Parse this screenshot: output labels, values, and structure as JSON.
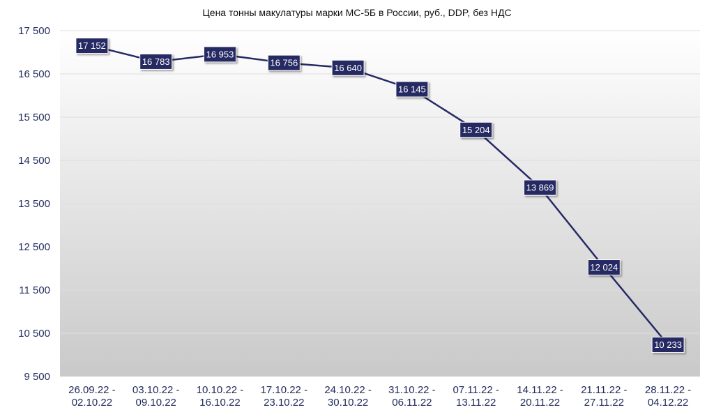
{
  "chart_data": {
    "type": "line",
    "title": "Цена тонны макулатуры марки МС-5Б в России, руб., DDP, без НДС",
    "xlabel": "",
    "ylabel": "",
    "categories": [
      [
        "26.09.22 -",
        "02.10.22"
      ],
      [
        "03.10.22 -",
        "09.10.22"
      ],
      [
        "10.10.22 -",
        "16.10.22"
      ],
      [
        "17.10.22 -",
        "23.10.22"
      ],
      [
        "24.10.22 -",
        "30.10.22"
      ],
      [
        "31.10.22 -",
        "06.11.22"
      ],
      [
        "07.11.22 -",
        "13.11.22"
      ],
      [
        "14.11.22 -",
        "20.11.22"
      ],
      [
        "21.11.22 -",
        "27.11.22"
      ],
      [
        "28.11.22 -",
        "04.12.22"
      ]
    ],
    "series": [
      {
        "values": [
          17152,
          16783,
          16953,
          16756,
          16640,
          16145,
          15204,
          13869,
          12024,
          10233
        ],
        "labels": [
          "17 152",
          "16 783",
          "16 953",
          "16 756",
          "16 640",
          "16 145",
          "15 204",
          "13 869",
          "12 024",
          "10 233"
        ],
        "color": "#262a64"
      }
    ],
    "ylim": [
      9500,
      17500
    ],
    "yticks": [
      9500,
      10500,
      11500,
      12500,
      13500,
      14500,
      15500,
      16500,
      17500
    ],
    "ytick_labels": [
      "9 500",
      "10 500",
      "11 500",
      "12 500",
      "13 500",
      "14 500",
      "15 500",
      "16 500",
      "17 500"
    ],
    "grid": true,
    "legend": "none",
    "colors": {
      "line": "#262a64",
      "label_box": "#262a64",
      "plot_bg_top": "#ffffff",
      "plot_bg_bottom": "#c9c9c9",
      "axis_text": "#1f2a5a"
    }
  }
}
